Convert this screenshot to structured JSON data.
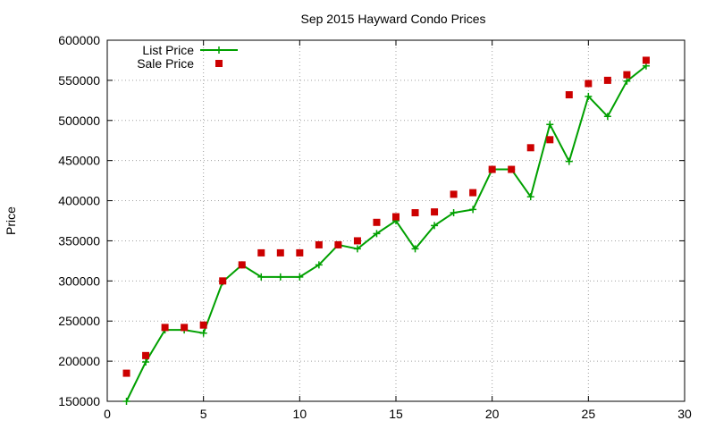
{
  "chart_data": {
    "type": "line",
    "title": "Sep 2015 Hayward Condo Prices",
    "xlabel": "",
    "ylabel": "Price",
    "xlim": [
      0,
      30
    ],
    "ylim": [
      150000,
      600000
    ],
    "xticks": [
      "0",
      "5",
      "10",
      "15",
      "20",
      "25",
      "30"
    ],
    "yticks": [
      "150000",
      "200000",
      "250000",
      "300000",
      "350000",
      "400000",
      "450000",
      "500000",
      "550000",
      "600000"
    ],
    "grid": true,
    "legend_position": "top-left",
    "x": [
      1,
      2,
      3,
      4,
      5,
      6,
      7,
      8,
      9,
      10,
      11,
      12,
      13,
      14,
      15,
      16,
      17,
      18,
      19,
      20,
      21,
      22,
      23,
      24,
      25,
      26,
      27,
      28
    ],
    "series": [
      {
        "name": "List Price",
        "kind": "line-points",
        "color": "#00a000",
        "values": [
          150000,
          199000,
          239000,
          239000,
          235000,
          299000,
          320000,
          305000,
          305000,
          305000,
          320000,
          345000,
          340000,
          359000,
          375000,
          340000,
          369000,
          385000,
          389000,
          439000,
          439000,
          405000,
          495000,
          449000,
          530000,
          505000,
          549000,
          568000
        ]
      },
      {
        "name": "Sale Price",
        "kind": "points",
        "color": "#cc0000",
        "values": [
          185000,
          207000,
          242000,
          242000,
          245000,
          300000,
          320000,
          335000,
          335000,
          335000,
          345000,
          345000,
          350000,
          373000,
          380000,
          385000,
          386000,
          408000,
          410000,
          439000,
          439000,
          466000,
          476000,
          532000,
          546000,
          550000,
          557000,
          575000
        ]
      }
    ]
  }
}
